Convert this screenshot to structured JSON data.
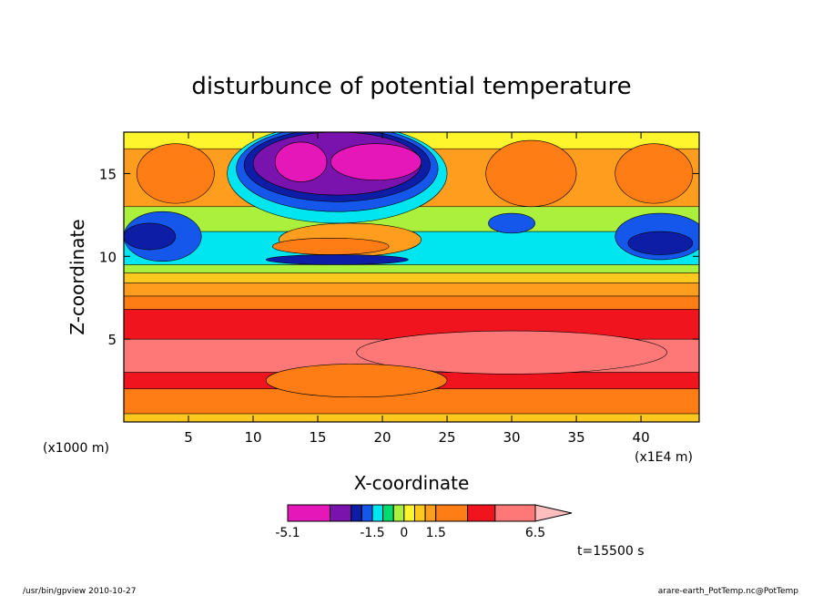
{
  "chart_data": {
    "type": "heatmap",
    "title": "disturbunce of potential temperature",
    "xlabel": "X-coordinate",
    "ylabel": "Z-coordinate",
    "x_unit_left": "(x1000 m)",
    "x_unit_right": "(x1E4 m)",
    "xlim": [
      0,
      44.5
    ],
    "ylim": [
      0,
      17.5
    ],
    "x_ticks": [
      {
        "value": 5,
        "label": "5"
      },
      {
        "value": 10,
        "label": "10"
      },
      {
        "value": 15,
        "label": "15"
      },
      {
        "value": 20,
        "label": "20"
      },
      {
        "value": 25,
        "label": "25"
      },
      {
        "value": 30,
        "label": "30"
      },
      {
        "value": 35,
        "label": "35"
      },
      {
        "value": 40,
        "label": "40"
      }
    ],
    "y_ticks": [
      {
        "value": 5,
        "label": "5"
      },
      {
        "value": 10,
        "label": "10"
      },
      {
        "value": 15,
        "label": "15"
      }
    ],
    "time_label": "t=15500 s",
    "colorbar": {
      "min": -5.1,
      "max": 6.5,
      "tick_labels": [
        {
          "value": -5.1,
          "label": "-5.1"
        },
        {
          "value": -1.5,
          "label": "-1.5"
        },
        {
          "value": 0,
          "label": "0"
        },
        {
          "value": 1.5,
          "label": "1.5"
        },
        {
          "value": 6.5,
          "label": "6.5"
        }
      ],
      "levels": [
        {
          "from": -5.1,
          "to": -3.5,
          "color": "#e617b8"
        },
        {
          "from": -3.5,
          "to": -2.5,
          "color": "#7a12ad"
        },
        {
          "from": -2.5,
          "to": -1.9,
          "color": "#0d1da6"
        },
        {
          "from": -1.9,
          "to": -1.5,
          "color": "#1557eb"
        },
        {
          "from": -1.5,
          "to": -1.0,
          "color": "#00e6f0"
        },
        {
          "from": -1.0,
          "to": -0.5,
          "color": "#00dc6e"
        },
        {
          "from": -0.5,
          "to": 0.0,
          "color": "#aaf03c"
        },
        {
          "from": 0.0,
          "to": 0.5,
          "color": "#fff52d"
        },
        {
          "from": 0.5,
          "to": 1.0,
          "color": "#ffc81e"
        },
        {
          "from": 1.0,
          "to": 1.5,
          "color": "#ff9d1e"
        },
        {
          "from": 1.5,
          "to": 3.0,
          "color": "#ff7d14"
        },
        {
          "from": 3.0,
          "to": 4.5,
          "color": "#f0141e"
        },
        {
          "from": 4.5,
          "to": 6.5,
          "color": "#ff7878"
        }
      ],
      "over_color": "#ffbebe"
    },
    "field_rows": [
      {
        "z": [
          0.0,
          0.5
        ],
        "color": "#ffc81e"
      },
      {
        "z": [
          0.5,
          2.0
        ],
        "color": "#ff7d14"
      },
      {
        "z": [
          2.0,
          3.0
        ],
        "color": "#f0141e"
      },
      {
        "z": [
          3.0,
          5.0
        ],
        "color": "#ff7878"
      },
      {
        "z": [
          5.0,
          6.8
        ],
        "color": "#f0141e"
      },
      {
        "z": [
          6.8,
          7.6
        ],
        "color": "#ff7d14"
      },
      {
        "z": [
          7.6,
          8.4
        ],
        "color": "#ff9d1e"
      },
      {
        "z": [
          8.4,
          9.0
        ],
        "color": "#ffc81e"
      },
      {
        "z": [
          9.0,
          9.5
        ],
        "color": "#aaf03c"
      },
      {
        "z": [
          9.5,
          11.5
        ],
        "color": "#00e6f0"
      },
      {
        "z": [
          11.5,
          13.0
        ],
        "color": "#aaf03c"
      },
      {
        "z": [
          13.0,
          16.5
        ],
        "color": "#ff9d1e"
      },
      {
        "z": [
          16.5,
          17.5
        ],
        "color": "#fff52d"
      }
    ],
    "features": [
      {
        "shape": "ellipse",
        "cx": 3.0,
        "cz": 11.2,
        "rx": 3.0,
        "rz": 1.5,
        "color": "#1557eb"
      },
      {
        "shape": "ellipse",
        "cx": 2.0,
        "cz": 11.2,
        "rx": 2.0,
        "rz": 0.8,
        "color": "#0d1da6"
      },
      {
        "shape": "ellipse",
        "cx": 41.5,
        "cz": 11.2,
        "rx": 3.5,
        "rz": 1.4,
        "color": "#1557eb"
      },
      {
        "shape": "ellipse",
        "cx": 41.5,
        "cz": 10.8,
        "rx": 2.5,
        "rz": 0.7,
        "color": "#0d1da6"
      },
      {
        "shape": "ellipse",
        "cx": 30.0,
        "cz": 12.0,
        "rx": 1.8,
        "rz": 0.6,
        "color": "#1557eb"
      },
      {
        "shape": "ellipse",
        "cx": 4.0,
        "cz": 15.0,
        "rx": 3.0,
        "rz": 1.8,
        "color": "#ff7d14"
      },
      {
        "shape": "ellipse",
        "cx": 31.5,
        "cz": 15.0,
        "rx": 3.5,
        "rz": 2.0,
        "color": "#ff7d14"
      },
      {
        "shape": "ellipse",
        "cx": 41.0,
        "cz": 15.0,
        "rx": 3.0,
        "rz": 1.8,
        "color": "#ff7d14"
      },
      {
        "shape": "ellipse",
        "cx": 16.5,
        "cz": 15.0,
        "rx": 8.5,
        "rz": 3.0,
        "color": "#00e6f0"
      },
      {
        "shape": "ellipse",
        "cx": 16.5,
        "cz": 15.3,
        "rx": 7.8,
        "rz": 2.6,
        "color": "#1557eb"
      },
      {
        "shape": "ellipse",
        "cx": 16.5,
        "cz": 15.5,
        "rx": 7.2,
        "rz": 2.2,
        "color": "#0d1da6"
      },
      {
        "shape": "ellipse",
        "cx": 16.5,
        "cz": 15.6,
        "rx": 6.5,
        "rz": 1.9,
        "color": "#7a12ad"
      },
      {
        "shape": "ellipse",
        "cx": 13.7,
        "cz": 15.7,
        "rx": 2.0,
        "rz": 1.2,
        "color": "#e617b8"
      },
      {
        "shape": "ellipse",
        "cx": 19.5,
        "cz": 15.7,
        "rx": 3.5,
        "rz": 1.1,
        "color": "#e617b8"
      },
      {
        "shape": "ellipse",
        "cx": 17.5,
        "cz": 11.0,
        "rx": 5.5,
        "rz": 1.0,
        "color": "#ff9d1e"
      },
      {
        "shape": "ellipse",
        "cx": 16.0,
        "cz": 10.6,
        "rx": 4.5,
        "rz": 0.5,
        "color": "#ff7d14"
      },
      {
        "shape": "ellipse",
        "cx": 16.5,
        "cz": 9.8,
        "rx": 5.5,
        "rz": 0.3,
        "color": "#0d1da6"
      },
      {
        "shape": "ellipse",
        "cx": 30.0,
        "cz": 4.2,
        "rx": 12.0,
        "rz": 1.3,
        "color": "#ff7878"
      },
      {
        "shape": "ellipse",
        "cx": 18.0,
        "cz": 2.5,
        "rx": 7.0,
        "rz": 1.0,
        "color": "#ff7d14"
      }
    ]
  },
  "footer": {
    "left": "/usr/bin/gpview   2010-10-27",
    "right": "arare-earth_PotTemp.nc@PotTemp"
  }
}
